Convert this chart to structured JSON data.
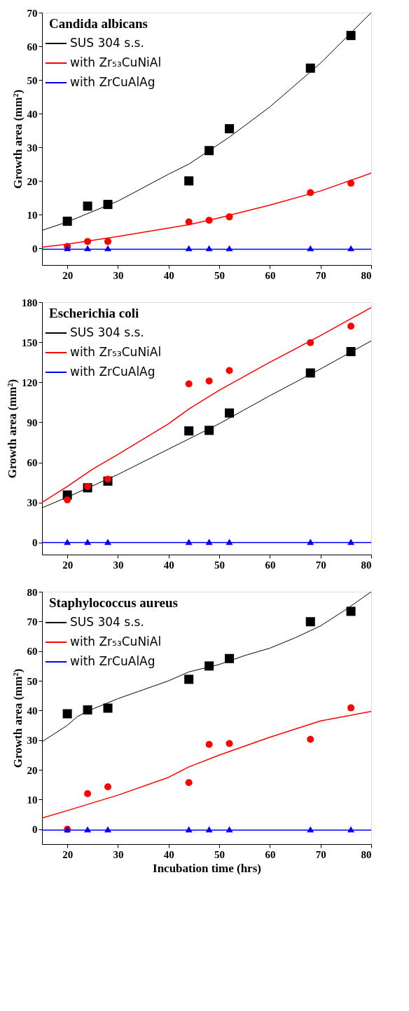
{
  "chart_data": [
    {
      "type": "scatter",
      "title": "Candida albicans",
      "ylabel": "Growth area   (mm²)",
      "xlim": [
        15,
        80
      ],
      "xticks": [
        20,
        30,
        40,
        50,
        60,
        70,
        80
      ],
      "ylim": [
        -5,
        70
      ],
      "yticks": [
        0,
        10,
        20,
        30,
        40,
        50,
        60,
        70
      ],
      "legend": "top left",
      "grid": false,
      "tick_labels": true,
      "series": [
        {
          "type": "line",
          "name": "SUS 304 s.s.",
          "color": "#000000",
          "x": [
            15,
            20,
            30,
            40,
            44,
            50,
            52,
            60,
            70,
            80
          ],
          "values": [
            5.3,
            7.8,
            14,
            22,
            25,
            31,
            33,
            42,
            55,
            70
          ]
        },
        {
          "type": "line",
          "name": "with Zr₅₃CuNiAl",
          "color": "#ff0000",
          "x": [
            15,
            20,
            30,
            40,
            44,
            50,
            52,
            60,
            70,
            80
          ],
          "values": [
            0.3,
            1.2,
            3.5,
            6,
            7,
            9,
            9.8,
            12.8,
            17,
            22.3
          ]
        },
        {
          "type": "line",
          "name": "with ZrCuAlAg",
          "color": "#0000ff",
          "x": [
            15,
            80
          ],
          "values": [
            -0.3,
            -0.3
          ]
        },
        {
          "color": "#000000",
          "marker": "square",
          "x": [
            20,
            24,
            28,
            44,
            48,
            52,
            68,
            76
          ],
          "values": [
            8,
            12.5,
            13,
            20,
            29,
            35.5,
            53.5,
            63.2
          ]
        },
        {
          "color": "#ff0000",
          "marker": "circle",
          "x": [
            20,
            24,
            28,
            44,
            48,
            52,
            68,
            76
          ],
          "values": [
            0.5,
            2,
            2,
            7.8,
            8.3,
            9.3,
            16.5,
            19.3
          ]
        },
        {
          "color": "#0000ff",
          "marker": "triangle",
          "x": [
            20,
            24,
            28,
            44,
            48,
            52,
            68,
            76
          ],
          "values": [
            0,
            0,
            0,
            0,
            0,
            0,
            0,
            0
          ]
        }
      ]
    },
    {
      "type": "scatter",
      "title": "Escherichia coli",
      "ylabel": "Growth area   (mm²)",
      "xlim": [
        15,
        80
      ],
      "xticks": [
        20,
        30,
        40,
        50,
        60,
        70,
        80
      ],
      "ylim": [
        -9,
        180
      ],
      "yticks": [
        0,
        30,
        60,
        90,
        120,
        150,
        180
      ],
      "legend": "top left",
      "grid": false,
      "tick_labels": true,
      "series": [
        {
          "type": "line",
          "name": "SUS 304 s.s.",
          "color": "#000000",
          "x": [
            15,
            20,
            30,
            40,
            50,
            60,
            70,
            80
          ],
          "values": [
            26,
            34,
            51,
            70,
            89,
            110,
            130,
            151
          ]
        },
        {
          "type": "line",
          "name": "with Zr₅₃CuNiAl",
          "color": "#ff0000",
          "x": [
            15,
            20,
            25,
            30,
            40,
            44,
            50,
            60,
            70,
            80
          ],
          "values": [
            30,
            42,
            55,
            66,
            89,
            100,
            114,
            135,
            155,
            176
          ]
        },
        {
          "type": "line",
          "name": "with ZrCuAlAg",
          "color": "#0000ff",
          "x": [
            15,
            80
          ],
          "values": [
            0,
            0
          ]
        },
        {
          "color": "#000000",
          "marker": "square",
          "x": [
            20,
            24,
            28,
            44,
            48,
            52,
            68,
            76
          ],
          "values": [
            35.6,
            41,
            46,
            83.6,
            84,
            97,
            127,
            143
          ]
        },
        {
          "color": "#ff0000",
          "marker": "circle",
          "x": [
            20,
            24,
            28,
            44,
            48,
            52,
            68,
            76
          ],
          "values": [
            32,
            42,
            47.5,
            118.8,
            121,
            128.8,
            149.7,
            162
          ]
        },
        {
          "color": "#0000ff",
          "marker": "triangle",
          "x": [
            20,
            24,
            28,
            44,
            48,
            52,
            68,
            76
          ],
          "values": [
            0.5,
            0.5,
            0.5,
            0.5,
            0.5,
            0.5,
            0.5,
            0.5
          ]
        }
      ]
    },
    {
      "type": "scatter",
      "title": "Staphylococcus aureus",
      "xlabel": "Incubation time (hrs)",
      "ylabel": "Growth area   (mm²)",
      "xlim": [
        15,
        80
      ],
      "xticks": [
        20,
        30,
        40,
        50,
        60,
        70,
        80
      ],
      "ylim": [
        -5,
        80
      ],
      "yticks": [
        0,
        10,
        20,
        30,
        40,
        50,
        60,
        70,
        80
      ],
      "legend": "top left",
      "grid": false,
      "tick_labels": true,
      "series": [
        {
          "type": "line",
          "name": "SUS 304 s.s.",
          "color": "#000000",
          "x": [
            15,
            20,
            22,
            25,
            30,
            35,
            40,
            44,
            50,
            55,
            60,
            65,
            70,
            75,
            80
          ],
          "values": [
            29.5,
            35,
            38,
            40.5,
            44,
            47,
            50,
            53,
            55.5,
            58.5,
            61,
            64.5,
            68.5,
            74,
            80
          ]
        },
        {
          "type": "line",
          "name": "with Zr₅₃CuNiAl",
          "color": "#ff0000",
          "x": [
            15,
            20,
            30,
            40,
            44,
            50,
            60,
            70,
            80
          ],
          "values": [
            3.8,
            6.3,
            11.5,
            17.5,
            21,
            25,
            31,
            36.5,
            39.7
          ]
        },
        {
          "type": "line",
          "name": "with ZrCuAlAg",
          "color": "#0000ff",
          "x": [
            15,
            80
          ],
          "values": [
            -0.3,
            -0.3
          ]
        },
        {
          "color": "#000000",
          "marker": "square",
          "x": [
            20,
            24,
            28,
            44,
            48,
            52,
            68,
            76
          ],
          "values": [
            38.9,
            40.2,
            40.8,
            50.5,
            55,
            57.5,
            69.9,
            73.4
          ]
        },
        {
          "color": "#ff0000",
          "marker": "circle",
          "x": [
            20,
            24,
            28,
            44,
            48,
            52,
            68,
            76
          ],
          "values": [
            0,
            12,
            14.3,
            15.7,
            28.6,
            28.9,
            30.3,
            40.9
          ]
        },
        {
          "color": "#0000ff",
          "marker": "triangle",
          "x": [
            20,
            24,
            28,
            44,
            48,
            52,
            68,
            76
          ],
          "values": [
            0,
            0,
            0,
            0,
            0,
            0,
            0,
            0
          ]
        }
      ]
    }
  ]
}
